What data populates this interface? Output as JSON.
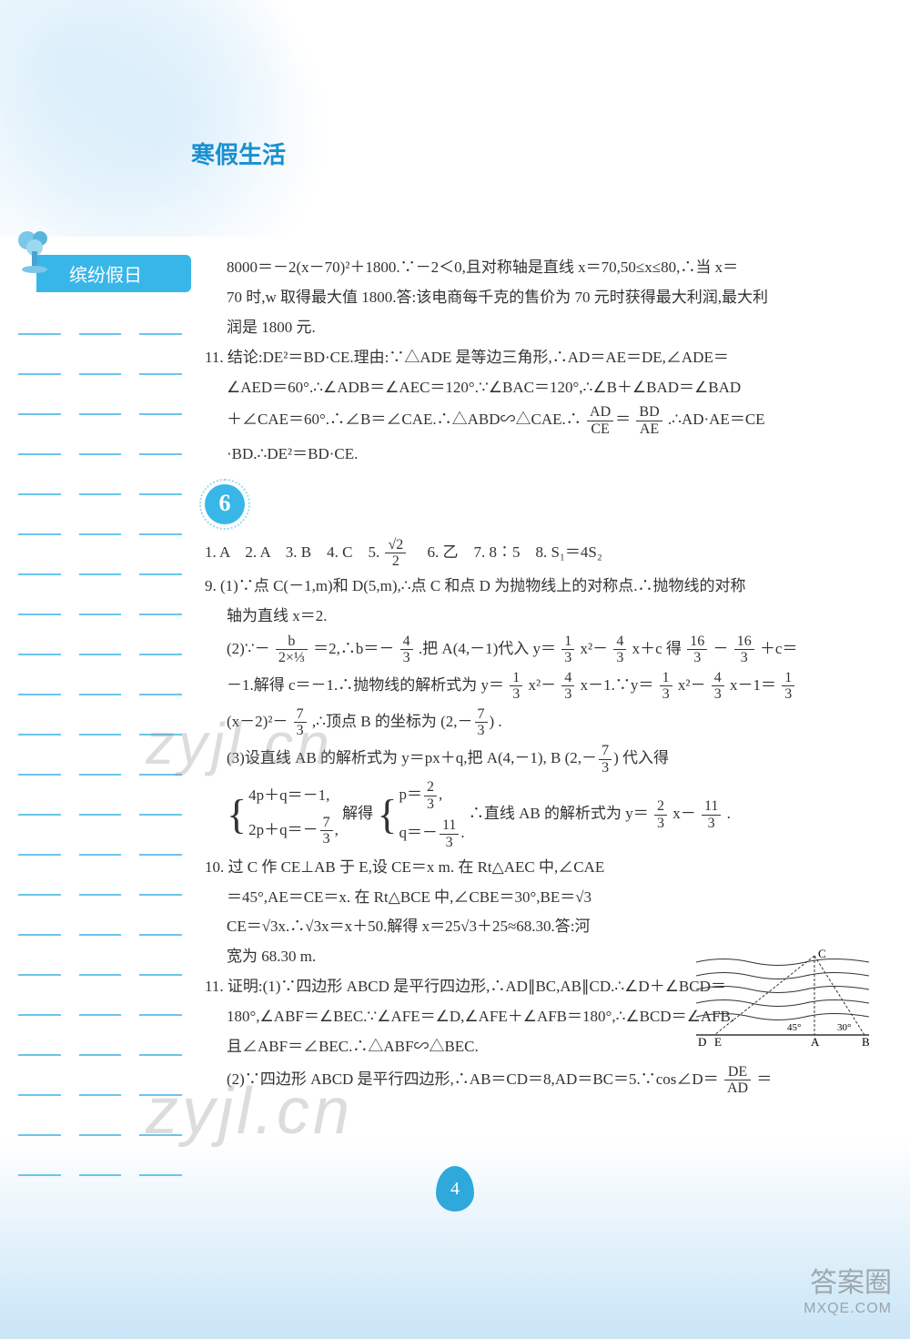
{
  "header_title": "寒假生活",
  "sidebar_badge": "缤纷假日",
  "page_number": "4",
  "watermark_text": "zyjl.cn",
  "corner_watermark_line1": "答案圈",
  "corner_watermark_line2": "MXQE.COM",
  "dash": {
    "rows": 22,
    "segments_per_row": 3,
    "color": "#6cc4ea"
  },
  "colors": {
    "accent": "#39b6e8",
    "accent_light": "#9cd8f0",
    "header_text": "#1890d0",
    "body_text": "#333333",
    "bg_bottom_tint": "rgba(100,180,230,0.35)"
  },
  "typography": {
    "header_fontsize": 26,
    "body_fontsize": 17,
    "badge_fontsize": 26
  },
  "continued_block": {
    "line1": "8000＝－2(x－70)²＋1800.∵－2＜0,且对称轴是直线 x＝70,50≤x≤80,∴当 x＝",
    "line2": "70 时,w 取得最大值 1800.答:该电商每千克的售价为 70 元时获得最大利润,最大利",
    "line3": "润是 1800 元.",
    "p11_a": "11. 结论:DE²＝BD·CE.理由:∵△ADE 是等边三角形,∴AD＝AE＝DE,∠ADE＝",
    "p11_b": "∠AED＝60°.∴∠ADB＝∠AEC＝120°.∵∠BAC＝120°,∴∠B＋∠BAD＝∠BAD",
    "p11_c_pre": "＋∠CAE＝60°.∴∠B＝∠CAE.∴△ABD∽△CAE.∴",
    "p11_c_post": ".∴AD·AE＝CE",
    "p11_d": "·BD.∴DE²＝BD·CE.",
    "frac_AD": "AD",
    "frac_CE": "CE",
    "frac_BD": "BD",
    "frac_AE": "AE"
  },
  "section6": {
    "number": "6",
    "answers_line_pre": "1. A　2. A　3. B　4. C　5. ",
    "answers_line_post": "　6. 乙　7. 8∶5　8. S₁＝4S₂",
    "ans5_num": "√2",
    "ans5_den": "2",
    "p9_1": "9. (1)∵点 C(－1,m)和 D(5,m),∴点 C 和点 D 为抛物线上的对称点.∴抛物线的对称",
    "p9_1b": "轴为直线 x＝2.",
    "p9_2_pre": "(2)∵－",
    "p9_2_mid": "＝2,∴b＝－",
    "p9_2_mid2": ".把 A(4,－1)代入 y＝",
    "p9_2_mid3": "x²－",
    "p9_2_mid4": "x＋c 得",
    "p9_2_mid5": "－",
    "p9_2_mid6": "＋c＝",
    "frac_b": "b",
    "frac_2x13": "2×⅓",
    "frac_4": "4",
    "frac_3": "3",
    "frac_1": "1",
    "frac_16": "16",
    "p9_2_line2_pre": "－1.解得 c＝－1.∴抛物线的解析式为 y＝",
    "p9_2_line2_mid": "x²－",
    "p9_2_line2_mid2": "x－1.∵y＝",
    "p9_2_line2_mid3": "x²－",
    "p9_2_line2_mid4": "x－1＝",
    "p9_2_line3_pre": "(x－2)²－",
    "p9_2_line3_mid": ",∴顶点 B 的坐标为",
    "p9_2_line3_post": ".",
    "frac_7": "7",
    "coord_B": "(2,－7/3)",
    "p9_3_pre": "(3)设直线 AB 的解析式为 y＝px＋q,把 A(4,－1), B",
    "p9_3_post": "代入得",
    "sys1_eq1": "4p＋q＝－1,",
    "sys1_eq2_pre": "2p＋q＝－",
    "sys1_eq2_post": ",",
    "sys_solve": "解得",
    "sys2_eq1_pre": "p＝",
    "sys2_eq1_post": ",",
    "sys2_eq2_pre": "q＝－",
    "sys2_eq2_post": ".",
    "frac_2": "2",
    "frac_11": "11",
    "p9_3_concl_pre": "∴直线 AB 的解析式为 y＝",
    "p9_3_concl_mid": "x－",
    "p9_3_concl_post": ".",
    "p10_a": "10. 过 C 作 CE⊥AB 于 E,设 CE＝x m. 在 Rt△AEC 中,∠CAE",
    "p10_b": "＝45°,AE＝CE＝x. 在 Rt△BCE 中,∠CBE＝30°,BE＝√3",
    "p10_c": "CE＝√3x.∴√3x＝x＋50.解得 x＝25√3＋25≈68.30.答:河",
    "p10_d": "宽为 68.30 m.",
    "p11_a": "11. 证明:(1)∵四边形 ABCD 是平行四边形,∴AD∥BC,AB∥CD.∴∠D＋∠BCD＝",
    "p11_b": "180°,∠ABF＝∠BEC.∵∠AFE＝∠D,∠AFE＋∠AFB＝180°,∴∠BCD＝∠AFB.",
    "p11_c": "且∠ABF＝∠BEC.∴△ABF∽△BEC.",
    "p11_2_pre": "(2)∵四边形 ABCD 是平行四边形,∴AB＝CD＝8,AD＝BC＝5.∵cos∠D＝",
    "p11_2_post": "＝",
    "frac_DE": "DE",
    "frac_AD": "AD"
  },
  "diagram": {
    "labels": {
      "C": "C",
      "D": "D",
      "E": "E",
      "A": "A",
      "B": "B",
      "angle45": "45°",
      "angle30": "30°"
    },
    "wave_count": 5,
    "stroke": "#333333"
  }
}
